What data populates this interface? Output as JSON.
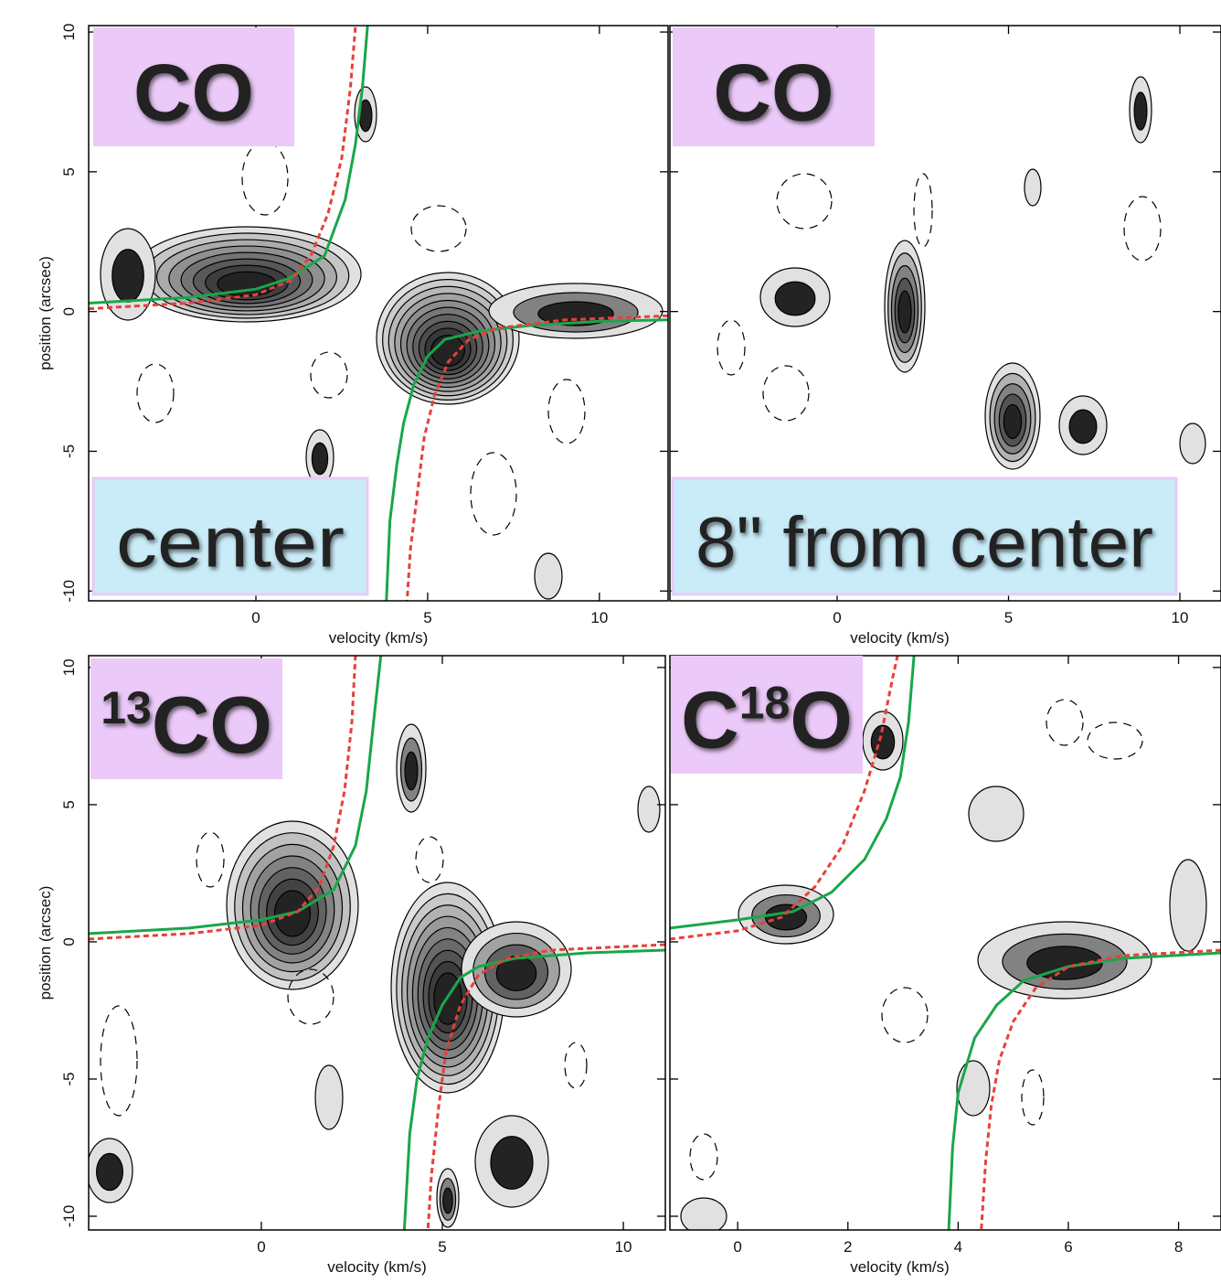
{
  "chart_data": [
    {
      "type": "line",
      "species": [
        {
          "text": "CO"
        }
      ],
      "location": "center",
      "xlabel": "velocity (km/s)",
      "ylabel": "position (arcsec)",
      "xlim": [
        -4.87,
        12.0
      ],
      "ylim": [
        -10.35,
        10.23
      ],
      "xticks": [
        0,
        5,
        10
      ],
      "yticks": [
        -10,
        -5,
        0,
        5,
        10
      ],
      "ytick_labels": true,
      "series": [
        {
          "color": "#1aa64a",
          "dash": false,
          "x": [
            -4.87,
            -2,
            0,
            1,
            2,
            2.6,
            2.9,
            3.1,
            3.25,
            null,
            12.0,
            10,
            8,
            6.5,
            5.5,
            5,
            4.6,
            4.3,
            4.1,
            3.9,
            3.8
          ],
          "values": [
            0.3,
            0.5,
            0.8,
            1.2,
            2,
            4,
            6,
            8,
            10.23,
            null,
            -0.3,
            -0.35,
            -0.5,
            -0.7,
            -1.0,
            -1.6,
            -2.6,
            -4,
            -5.5,
            -7.5,
            -10.35
          ]
        },
        {
          "color": "#e8403a",
          "dash": true,
          "x": [
            -4.87,
            -2,
            0,
            1,
            1.6,
            2.1,
            2.5,
            2.75,
            2.9,
            null,
            12.0,
            9,
            7,
            6.2,
            5.6,
            5.2,
            4.9,
            4.7,
            4.5,
            4.4
          ],
          "values": [
            0.1,
            0.3,
            0.6,
            1.1,
            2,
            3.5,
            5.5,
            8,
            10.23,
            null,
            -0.15,
            -0.3,
            -0.6,
            -1,
            -1.8,
            -3,
            -4.5,
            -6.5,
            -8.5,
            -10.35
          ]
        }
      ]
    },
    {
      "type": "line",
      "species": [
        {
          "text": "CO"
        }
      ],
      "location": "8\" from center",
      "xlabel": "velocity (km/s)",
      "xlim": [
        -4.88,
        11.2
      ],
      "ylim": [
        -10.35,
        10.23
      ],
      "xticks": [
        0,
        5,
        10
      ],
      "yticks": [
        -10,
        -5,
        0,
        5,
        10
      ],
      "ytick_labels": false,
      "series": []
    },
    {
      "type": "line",
      "species": [
        {
          "text": "13",
          "sup": true
        },
        {
          "text": "CO"
        }
      ],
      "xlabel": "velocity (km/s)",
      "ylabel": "position (arcsec)",
      "xlim": [
        -4.77,
        11.16
      ],
      "ylim": [
        -10.5,
        10.43
      ],
      "xticks": [
        0,
        5,
        10
      ],
      "yticks": [
        -10,
        -5,
        0,
        5,
        10
      ],
      "ytick_labels": true,
      "series": [
        {
          "color": "#1aa64a",
          "dash": false,
          "x": [
            -4.77,
            -2,
            0,
            1,
            2,
            2.6,
            2.9,
            3.1,
            3.3,
            null,
            11.16,
            9,
            7,
            6,
            5.5,
            5,
            4.6,
            4.3,
            4.1,
            3.95
          ],
          "values": [
            0.3,
            0.5,
            0.8,
            1.1,
            1.9,
            3.5,
            5.5,
            8,
            10.43,
            null,
            -0.3,
            -0.4,
            -0.6,
            -0.9,
            -1.3,
            -2.3,
            -3.5,
            -5,
            -7,
            -10.5
          ]
        },
        {
          "color": "#e8403a",
          "dash": true,
          "x": [
            -4.77,
            -2,
            0,
            1,
            1.6,
            2,
            2.3,
            2.5,
            2.6,
            null,
            11.16,
            8,
            6.8,
            6,
            5.5,
            5.1,
            4.9,
            4.7,
            4.6
          ],
          "values": [
            0.1,
            0.3,
            0.6,
            1.1,
            2,
            3.5,
            5.5,
            8,
            10.43,
            null,
            -0.1,
            -0.3,
            -0.6,
            -1.2,
            -2.3,
            -4,
            -6,
            -8.5,
            -10.5
          ]
        }
      ]
    },
    {
      "type": "line",
      "species": [
        {
          "text": "C"
        },
        {
          "text": "18",
          "sup": true
        },
        {
          "text": "O"
        }
      ],
      "xlabel": "velocity (km/s)",
      "xlim": [
        -1.23,
        8.77
      ],
      "ylim": [
        -10.5,
        10.43
      ],
      "xticks": [
        0,
        2,
        4,
        6,
        8
      ],
      "yticks": [
        -10,
        -5,
        0,
        5,
        10
      ],
      "ytick_labels": false,
      "series": [
        {
          "color": "#1aa64a",
          "dash": false,
          "x": [
            -1.23,
            0,
            1,
            1.7,
            2.3,
            2.7,
            2.95,
            3.1,
            3.2,
            null,
            8.77,
            7,
            6,
            5.2,
            4.7,
            4.3,
            4.0,
            3.9,
            3.83
          ],
          "values": [
            0.5,
            0.8,
            1.1,
            1.8,
            3,
            4.5,
            6,
            8,
            10.43,
            null,
            -0.4,
            -0.6,
            -0.9,
            -1.4,
            -2.3,
            -3.5,
            -5.5,
            -7.5,
            -10.5
          ]
        },
        {
          "color": "#e8403a",
          "dash": true,
          "x": [
            -1.23,
            0,
            0.8,
            1.4,
            1.9,
            2.3,
            2.6,
            2.8,
            2.9,
            null,
            8.77,
            7,
            6,
            5.4,
            5.0,
            4.75,
            4.6,
            4.5,
            4.42
          ],
          "values": [
            0.1,
            0.4,
            0.9,
            2,
            3.5,
            5.5,
            7.5,
            9.5,
            10.43,
            null,
            -0.3,
            -0.5,
            -0.9,
            -1.7,
            -2.9,
            -4.3,
            -6,
            -8,
            -10.5
          ]
        }
      ]
    }
  ]
}
